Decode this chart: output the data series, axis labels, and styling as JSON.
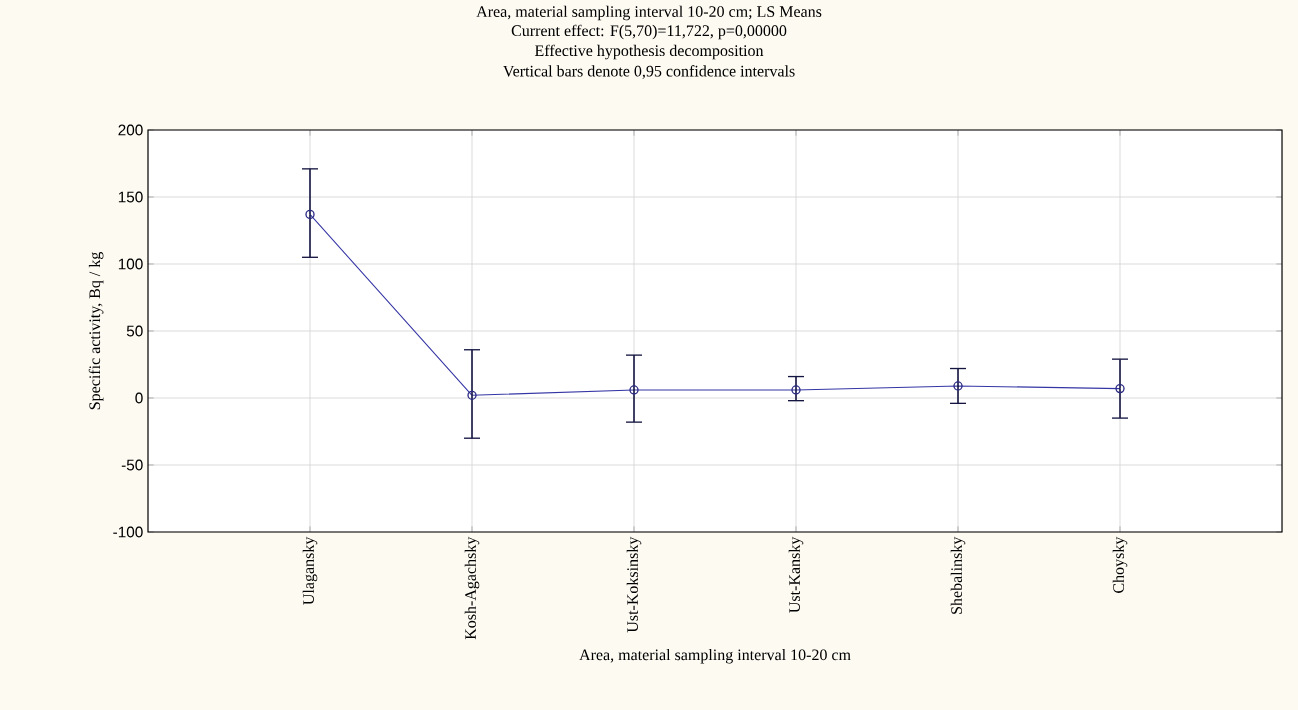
{
  "chart_data": {
    "type": "line",
    "title": "Area, material sampling interval 10-20 cm; LS Means",
    "subtitle": "Current effect: F(5,70)=11,722, p=0,00000",
    "annotations": [
      "Effective hypothesis decomposition",
      "Vertical bars denote 0,95 confidence intervals"
    ],
    "xlabel": "Area, material sampling interval 10-20 cm",
    "ylabel": "Specific activity, Bq / kg",
    "categories": [
      "Ulagansky",
      "Kosh-Agachsky",
      "Ust-Koksinsky",
      "Ust-Kansky",
      "Shebalinsky",
      "Choysky"
    ],
    "values": [
      137,
      2,
      6,
      6,
      9,
      7
    ],
    "errors": [
      [
        105,
        171
      ],
      [
        -30,
        36
      ],
      [
        -18,
        32
      ],
      [
        -2,
        16
      ],
      [
        -4,
        22
      ],
      [
        -15,
        29
      ]
    ],
    "color": "#3535a5",
    "ylim": [
      -100,
      200
    ],
    "yticks": [
      -100,
      -50,
      0,
      50,
      100,
      150,
      200
    ],
    "grid": true,
    "marker": "circle",
    "line_style": "solid"
  }
}
